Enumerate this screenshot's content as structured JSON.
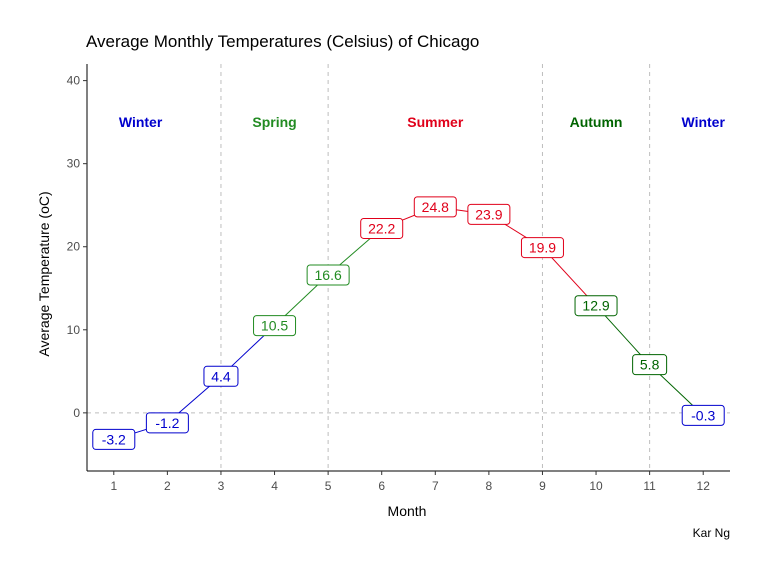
{
  "title": "Average Monthly Temperatures (Celsius) of Chicago",
  "caption": "Kar Ng",
  "colors": {
    "winter": "#0000CD",
    "spring": "#228B22",
    "summer": "#E0001A",
    "autumn": "#006400",
    "grid_dashed": "#BEBEBE",
    "tick_text": "#4D4D4D"
  },
  "chart_data": {
    "type": "line",
    "title": "Average Monthly Temperatures (Celsius) of Chicago",
    "xlabel": "Month",
    "ylabel": "Average Temperature (oC)",
    "xlim": [
      0.5,
      12.5
    ],
    "ylim": [
      -7,
      42
    ],
    "x_ticks": [
      1,
      2,
      3,
      4,
      5,
      6,
      7,
      8,
      9,
      10,
      11,
      12
    ],
    "y_ticks": [
      0,
      10,
      20,
      30,
      40
    ],
    "grid": false,
    "season_boundaries": [
      3,
      5,
      9,
      11
    ],
    "reference_line_y": 0,
    "points": [
      {
        "x": 1,
        "y": -3.2,
        "label": "-3.2",
        "season": "winter"
      },
      {
        "x": 2,
        "y": -1.2,
        "label": "-1.2",
        "season": "winter"
      },
      {
        "x": 3,
        "y": 4.4,
        "label": "4.4",
        "season": "winter"
      },
      {
        "x": 4,
        "y": 10.5,
        "label": "10.5",
        "season": "spring"
      },
      {
        "x": 5,
        "y": 16.6,
        "label": "16.6",
        "season": "spring"
      },
      {
        "x": 6,
        "y": 22.2,
        "label": "22.2",
        "season": "summer"
      },
      {
        "x": 7,
        "y": 24.8,
        "label": "24.8",
        "season": "summer"
      },
      {
        "x": 8,
        "y": 23.9,
        "label": "23.9",
        "season": "summer"
      },
      {
        "x": 9,
        "y": 19.9,
        "label": "19.9",
        "season": "summer"
      },
      {
        "x": 10,
        "y": 12.9,
        "label": "12.9",
        "season": "autumn"
      },
      {
        "x": 11,
        "y": 5.8,
        "label": "5.8",
        "season": "autumn"
      },
      {
        "x": 12,
        "y": -0.3,
        "label": "-0.3",
        "season": "winter"
      }
    ],
    "segments": [
      {
        "from": 1,
        "to": 2,
        "season": "winter"
      },
      {
        "from": 2,
        "to": 3,
        "season": "winter"
      },
      {
        "from": 3,
        "to": 4,
        "season": "winter"
      },
      {
        "from": 4,
        "to": 5,
        "season": "spring"
      },
      {
        "from": 5,
        "to": 6,
        "season": "spring"
      },
      {
        "from": 6,
        "to": 7,
        "season": "summer"
      },
      {
        "from": 7,
        "to": 8,
        "season": "summer"
      },
      {
        "from": 8,
        "to": 9,
        "season": "summer"
      },
      {
        "from": 9,
        "to": 10,
        "season": "summer"
      },
      {
        "from": 10,
        "to": 11,
        "season": "autumn"
      },
      {
        "from": 11,
        "to": 12,
        "season": "autumn"
      }
    ],
    "season_labels": [
      {
        "text": "Winter",
        "x": 1.5,
        "y": 35,
        "season": "winter"
      },
      {
        "text": "Spring",
        "x": 4,
        "y": 35,
        "season": "spring"
      },
      {
        "text": "Summer",
        "x": 7,
        "y": 35,
        "season": "summer"
      },
      {
        "text": "Autumn",
        "x": 10,
        "y": 35,
        "season": "autumn"
      },
      {
        "text": "Winter",
        "x": 12,
        "y": 35,
        "season": "winter"
      }
    ]
  }
}
